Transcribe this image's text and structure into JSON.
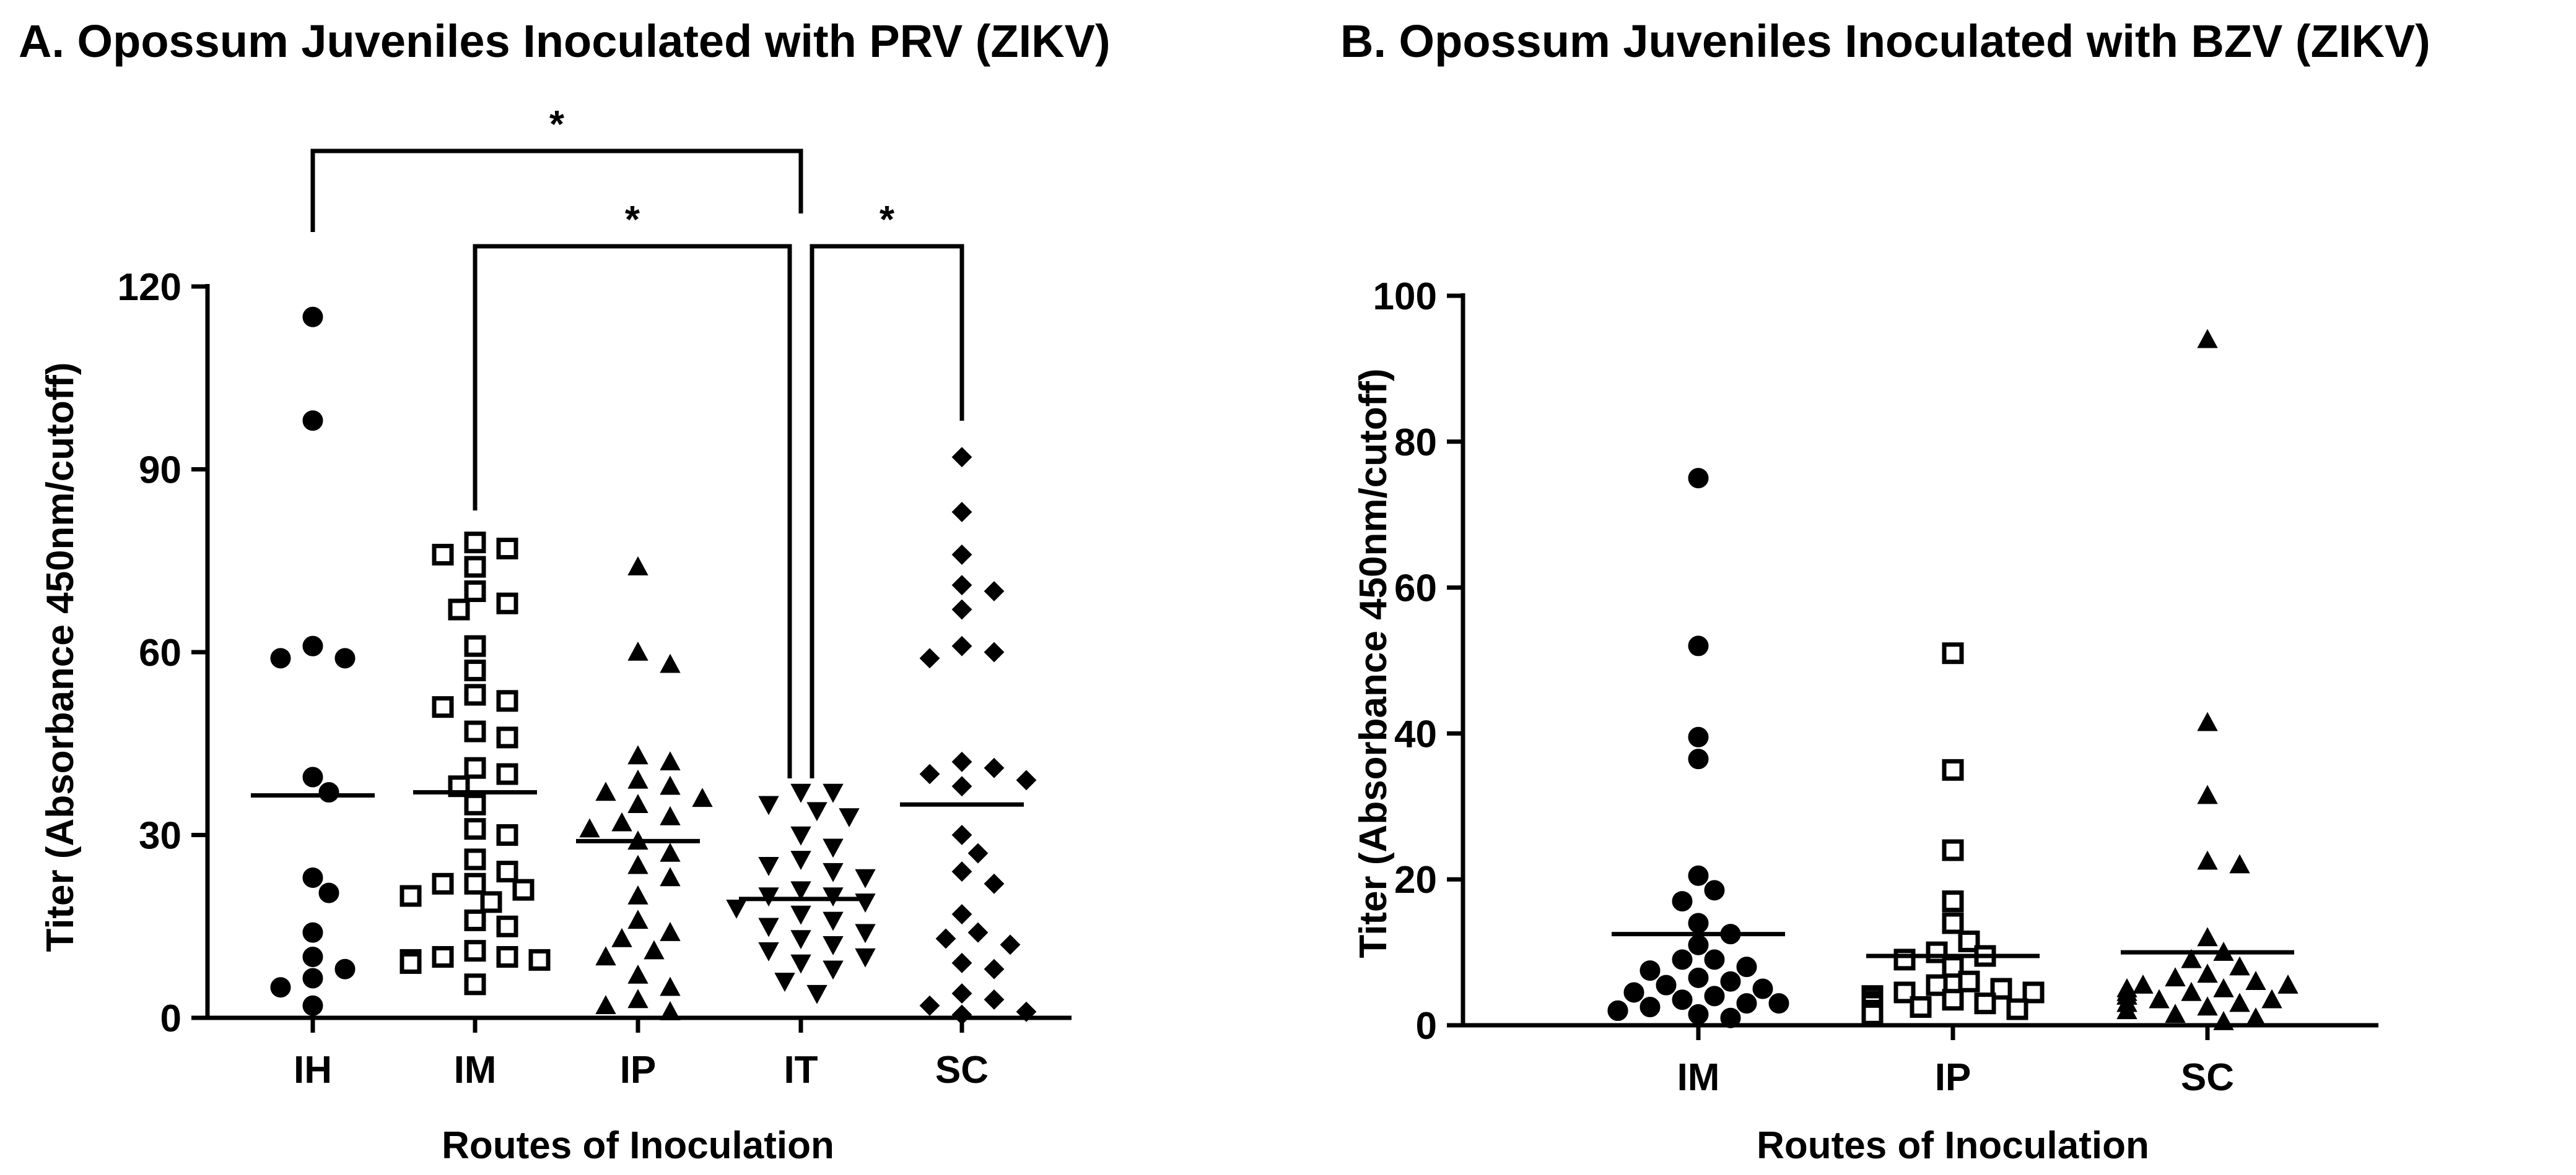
{
  "chart_data": [
    {
      "type": "scatter",
      "title": "A. Opossum Juveniles Inoculated with PRV (ZIKV)",
      "xlabel": "Routes of Inoculation",
      "ylabel": "Titer (Absorbance 450nm/cutoff)",
      "categories": [
        "IH",
        "IM",
        "IP",
        "IT",
        "SC"
      ],
      "ylim": [
        0,
        120
      ],
      "yticks": [
        "0",
        "30",
        "60",
        "90",
        "120"
      ],
      "grid": false,
      "legend": "none",
      "markers": [
        "circle",
        "square",
        "triangle-up",
        "triangle-down",
        "diamond"
      ],
      "series": [
        {
          "category": "IH",
          "mean": 36.5,
          "values": [
            115,
            98,
            59,
            61,
            59,
            39.5,
            37,
            23,
            20.5,
            14,
            10,
            8,
            6.5,
            5,
            2
          ]
        },
        {
          "category": "IM",
          "mean": 37,
          "values": [
            78,
            77,
            76,
            74,
            70,
            68,
            67,
            61,
            57,
            53,
            52,
            51,
            47,
            46,
            41,
            40,
            38,
            35,
            31,
            30,
            26,
            24,
            22,
            22,
            21,
            20,
            20,
            19,
            16,
            15,
            11,
            10,
            10,
            9.5,
            9.5,
            9,
            9,
            5.5
          ]
        },
        {
          "category": "IP",
          "mean": 29,
          "values": [
            74,
            60,
            58,
            43,
            42,
            39,
            38,
            37,
            36,
            35,
            33,
            32,
            31,
            29,
            27,
            25,
            23,
            20,
            16,
            14,
            13,
            11,
            10,
            7,
            5,
            3,
            2,
            1
          ]
        },
        {
          "category": "IT",
          "mean": 19.5,
          "values": [
            37,
            37,
            35,
            34,
            33,
            30,
            28,
            26,
            25,
            24,
            23,
            21,
            20,
            20,
            19,
            18,
            17,
            16,
            15,
            14,
            13,
            12,
            11,
            10,
            9,
            8,
            6,
            4
          ]
        },
        {
          "category": "SC",
          "mean": 35,
          "values": [
            92,
            83,
            76,
            71,
            70,
            67,
            61,
            60,
            59,
            42,
            41,
            40,
            39,
            38,
            30,
            27,
            24,
            22,
            17,
            14,
            13,
            12,
            9,
            8,
            4,
            3,
            2,
            1,
            0.5
          ]
        }
      ],
      "significance": [
        {
          "from": "IH",
          "to": "IT",
          "label": "*"
        },
        {
          "from": "IM",
          "to": "IT",
          "label": "*"
        },
        {
          "from": "IT",
          "to": "SC",
          "label": "*"
        }
      ]
    },
    {
      "type": "scatter",
      "title": "B. Opossum Juveniles Inoculated with BZV (ZIKV)",
      "xlabel": "Routes of Inoculation",
      "ylabel": "Titer (Absorbance 450nm/cutoff)",
      "categories": [
        "IM",
        "IP",
        "SC"
      ],
      "ylim": [
        0,
        100
      ],
      "yticks": [
        "0",
        "20",
        "40",
        "60",
        "80",
        "100"
      ],
      "grid": false,
      "legend": "none",
      "markers": [
        "circle",
        "square",
        "triangle-up"
      ],
      "series": [
        {
          "category": "IM",
          "mean": 12.5,
          "values": [
            75,
            52,
            39.5,
            36.5,
            20.5,
            18.5,
            17,
            14,
            12.5,
            11,
            9,
            9,
            8,
            7.5,
            6.5,
            6,
            5.5,
            5,
            4.5,
            4,
            3.5,
            3,
            3,
            2.5,
            2,
            2,
            2,
            1.5,
            1
          ]
        },
        {
          "category": "IP",
          "mean": 9.5,
          "values": [
            51,
            35,
            24,
            17,
            14,
            11.5,
            10,
            9.5,
            9,
            8,
            6,
            5.5,
            5,
            4.5,
            4.5,
            4,
            4,
            3.8,
            3.5,
            3.2,
            3,
            3,
            2.8,
            2.5,
            2.2,
            2,
            1.8,
            1.5
          ]
        },
        {
          "category": "SC",
          "mean": 10,
          "values": [
            94,
            41.5,
            31.5,
            22.5,
            22,
            12,
            10,
            9,
            8,
            7,
            6.5,
            6,
            5.5,
            5.5,
            5,
            5,
            4.5,
            4.5,
            4,
            4,
            4,
            3.5,
            3.5,
            3,
            3,
            3,
            2.5,
            2,
            1.5,
            1,
            0.5
          ]
        }
      ]
    }
  ]
}
